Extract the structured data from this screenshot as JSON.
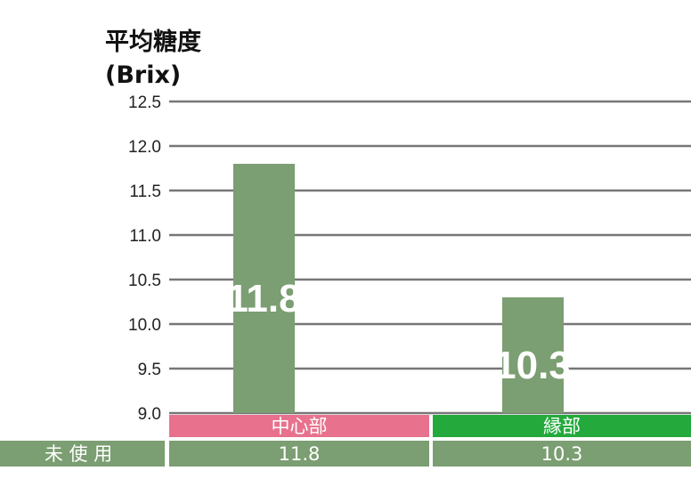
{
  "chart_data": {
    "type": "bar",
    "ylabel": [
      "平均糖度",
      "(Brix)"
    ],
    "ylim": [
      9.0,
      12.5
    ],
    "yticks": [
      "12.5",
      "12.0",
      "11.5",
      "11.0",
      "10.5",
      "10.0",
      "9.5",
      "9.0"
    ],
    "categories": [
      "中心部",
      "縁部"
    ],
    "values": [
      11.8,
      10.3
    ],
    "data_labels": [
      "11.8",
      "10.3"
    ],
    "grid": true,
    "colors": {
      "bar": "#7b9e72",
      "gridline": "#777777",
      "category_band": [
        "#e8728e",
        "#23a93c"
      ],
      "table_row": "#7b9e72"
    },
    "table": {
      "row_label": "未 使 用",
      "cells": [
        "11.8",
        "10.3"
      ]
    }
  }
}
